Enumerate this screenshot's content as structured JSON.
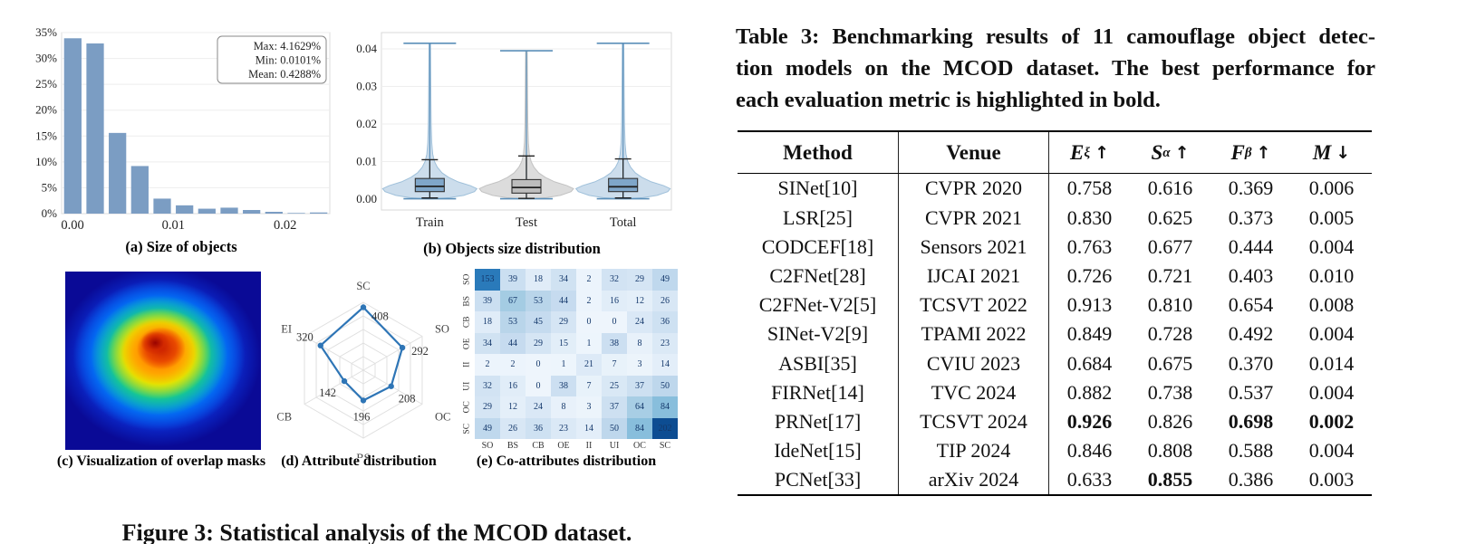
{
  "figure": {
    "caption": "Figure 3: Statistical analysis of the MCOD dataset.",
    "captions": {
      "a": "(a) Size of objects",
      "b": "(b) Objects size distribution",
      "c": "(c) Visualization of overlap masks",
      "d": "(d) Attribute distribution",
      "e": "(e) Co-attributes distribution"
    }
  },
  "chart_data": [
    {
      "id": "size_of_objects",
      "type": "bar",
      "title": "(a) Size of objects",
      "xlabel": "",
      "ylabel": "",
      "x_ticks": [
        "0.00",
        "0.01",
        "0.02"
      ],
      "y_ticks": [
        "0%",
        "5%",
        "10%",
        "15%",
        "20%",
        "25%",
        "30%",
        "35%"
      ],
      "bin_start": 0.0,
      "bin_width": 0.002,
      "xlim": [
        0,
        0.024
      ],
      "ylim": [
        0,
        35
      ],
      "values_pct": [
        33.9,
        32.9,
        15.6,
        9.2,
        2.9,
        1.6,
        0.95,
        1.15,
        0.7,
        0.35,
        0.12,
        0.22
      ],
      "annotation_lines": [
        "Max: 4.1629%",
        "Min: 0.0101%",
        "Mean: 0.4288%"
      ],
      "bar_color": "#7b9dc3",
      "grid": true
    },
    {
      "id": "objects_size_distribution",
      "type": "violin",
      "title": "(b) Objects size distribution",
      "categories": [
        "Train",
        "Test",
        "Total"
      ],
      "y_ticks": [
        "0.00",
        "0.01",
        "0.02",
        "0.03",
        "0.04"
      ],
      "ylim": [
        0,
        0.0435
      ],
      "series": [
        {
          "name": "Train",
          "max": 0.0415,
          "whisker_high": 0.0105,
          "q3": 0.0055,
          "median": 0.0034,
          "q1": 0.002,
          "whisker_low": 0.0003,
          "min": 0.0001,
          "fill": "#ccddec",
          "edge": "#9fc0da",
          "box_fill": "#7fa6c9"
        },
        {
          "name": "Test",
          "max": 0.0395,
          "whisker_high": 0.0115,
          "q3": 0.0052,
          "median": 0.0031,
          "q1": 0.0016,
          "whisker_low": 0.0002,
          "min": 0.0001,
          "fill": "#dcdcdc",
          "edge": "#c2c2c2",
          "box_fill": "#bdbdbd"
        },
        {
          "name": "Total",
          "max": 0.0415,
          "whisker_high": 0.0107,
          "q3": 0.0055,
          "median": 0.0033,
          "q1": 0.002,
          "whisker_low": 0.0003,
          "min": 0.0001,
          "fill": "#ccddec",
          "edge": "#9fc0da",
          "box_fill": "#7fa6c9"
        }
      ],
      "stem_color": "#5b8fb9",
      "grid": true
    },
    {
      "id": "overlap_masks",
      "type": "heatmap",
      "title": "(c) Visualization of overlap masks",
      "colormap": "jet",
      "description": "dense red/orange core near center fading through yellow, green, cyan to dark blue background"
    },
    {
      "id": "attribute_distribution",
      "type": "radar",
      "title": "(d) Attribute distribution",
      "categories": [
        "SC",
        "SO",
        "OC",
        "BS",
        "CB",
        "EI"
      ],
      "values": [
        408,
        292,
        208,
        196,
        142,
        320
      ],
      "max": 440,
      "rings": 5,
      "line_color": "#2e75b6"
    },
    {
      "id": "co_attributes_distribution",
      "type": "heatmap",
      "title": "(e) Co-attributes distribution",
      "colormap": "Blues",
      "labels": [
        "SO",
        "BS",
        "CB",
        "OE",
        "II",
        "UI",
        "OC",
        "SC"
      ],
      "vmax": 202,
      "matrix": [
        [
          153,
          39,
          18,
          34,
          2,
          32,
          29,
          49
        ],
        [
          39,
          67,
          53,
          44,
          2,
          16,
          12,
          26
        ],
        [
          18,
          53,
          45,
          29,
          0,
          0,
          24,
          36
        ],
        [
          34,
          44,
          29,
          15,
          1,
          38,
          8,
          23
        ],
        [
          2,
          2,
          0,
          1,
          21,
          7,
          3,
          14
        ],
        [
          32,
          16,
          0,
          38,
          7,
          25,
          37,
          50
        ],
        [
          29,
          12,
          24,
          8,
          3,
          37,
          64,
          84
        ],
        [
          49,
          26,
          36,
          23,
          14,
          50,
          84,
          202
        ]
      ]
    }
  ],
  "table": {
    "title_lines": [
      "Table 3: Benchmarking results of 11 camouflage object detec-",
      "tion models on the MCOD dataset. The best performance for",
      "each evaluation metric is highlighted in bold."
    ],
    "columns": [
      {
        "label": "Method"
      },
      {
        "label": "Venue"
      },
      {
        "base": "E",
        "sub": "ξ",
        "arrow": "↑"
      },
      {
        "base": "S",
        "sub": "α",
        "arrow": "↑"
      },
      {
        "base": "F",
        "sub": "β",
        "arrow": "↑"
      },
      {
        "base": "M",
        "sub": "",
        "arrow": "↓"
      }
    ],
    "rows": [
      {
        "method": "SINet[10]",
        "venue": "CVPR 2020",
        "e": "0.758",
        "s": "0.616",
        "f": "0.369",
        "m": "0.006",
        "bold": []
      },
      {
        "method": "LSR[25]",
        "venue": "CVPR 2021",
        "e": "0.830",
        "s": "0.625",
        "f": "0.373",
        "m": "0.005",
        "bold": []
      },
      {
        "method": "CODCEF[18]",
        "venue": "Sensors 2021",
        "e": "0.763",
        "s": "0.677",
        "f": "0.444",
        "m": "0.004",
        "bold": []
      },
      {
        "method": "C2FNet[28]",
        "venue": "IJCAI 2021",
        "e": "0.726",
        "s": "0.721",
        "f": "0.403",
        "m": "0.010",
        "bold": []
      },
      {
        "method": "C2FNet-V2[5]",
        "venue": "TCSVT 2022",
        "e": "0.913",
        "s": "0.810",
        "f": "0.654",
        "m": "0.008",
        "bold": []
      },
      {
        "method": "SINet-V2[9]",
        "venue": "TPAMI 2022",
        "e": "0.849",
        "s": "0.728",
        "f": "0.492",
        "m": "0.004",
        "bold": []
      },
      {
        "method": "ASBI[35]",
        "venue": "CVIU 2023",
        "e": "0.684",
        "s": "0.675",
        "f": "0.370",
        "m": "0.014",
        "bold": []
      },
      {
        "method": "FIRNet[14]",
        "venue": "TVC 2024",
        "e": "0.882",
        "s": "0.738",
        "f": "0.537",
        "m": "0.004",
        "bold": []
      },
      {
        "method": "PRNet[17]",
        "venue": "TCSVT 2024",
        "e": "0.926",
        "s": "0.826",
        "f": "0.698",
        "m": "0.002",
        "bold": [
          "e",
          "f",
          "m"
        ]
      },
      {
        "method": "IdeNet[15]",
        "venue": "TIP 2024",
        "e": "0.846",
        "s": "0.808",
        "f": "0.588",
        "m": "0.004",
        "bold": []
      },
      {
        "method": "PCNet[33]",
        "venue": "arXiv 2024",
        "e": "0.633",
        "s": "0.855",
        "f": "0.386",
        "m": "0.003",
        "bold": [
          "s"
        ]
      }
    ]
  }
}
